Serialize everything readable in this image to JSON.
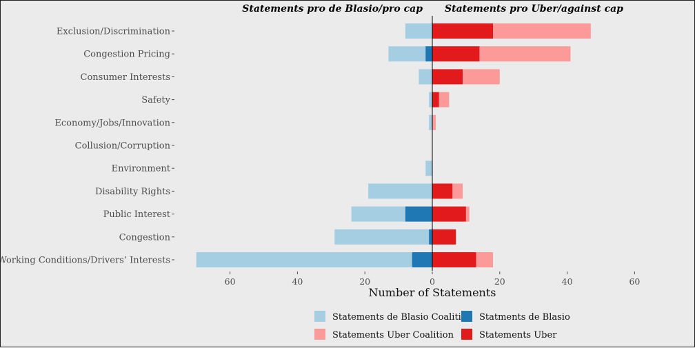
{
  "chart_data": {
    "type": "bar",
    "orientation": "horizontal-diverging",
    "side_titles": {
      "left": "Statements pro de Blasio/pro cap",
      "right": "Statements pro Uber/against cap"
    },
    "xlabel": "Number of Statements",
    "xlim": [
      -70,
      70
    ],
    "xticks": [
      -60,
      -40,
      -20,
      0,
      20,
      40,
      60
    ],
    "xtick_labels": [
      "60",
      "40",
      "20",
      "0",
      "20",
      "40",
      "60"
    ],
    "categories": [
      "Exclusion/Discrimination",
      "Congestion Pricing",
      "Consumer Interests",
      "Safety",
      "Economy/Jobs/Innovation",
      "Collusion/Corruption",
      "Environment",
      "Disability Rights",
      "Public Interest",
      "Congestion",
      "Working Conditions/Drivers’ Interests"
    ],
    "series": [
      {
        "name": "Statements de Blasio Coalition",
        "color": "#a6cee3",
        "side": "left",
        "values": [
          8,
          11,
          4,
          1,
          1,
          0,
          2,
          19,
          16,
          28,
          64
        ]
      },
      {
        "name": "Statments de Blasio",
        "color": "#1f78b4",
        "side": "left",
        "values": [
          0,
          2,
          0,
          0,
          0,
          0,
          0,
          0,
          8,
          1,
          6
        ]
      },
      {
        "name": "Statements Uber Coalition",
        "color": "#fb9a99",
        "side": "right",
        "values": [
          29,
          27,
          11,
          3,
          1,
          0,
          0,
          3,
          1,
          0,
          5
        ]
      },
      {
        "name": "Statements Uber",
        "color": "#e31a1c",
        "side": "right",
        "values": [
          18,
          14,
          9,
          2,
          0,
          0,
          0,
          6,
          10,
          7,
          13
        ]
      }
    ],
    "legend": [
      {
        "label": "Statements de Blasio Coalition",
        "color": "#a6cee3"
      },
      {
        "label": "Statments de Blasio",
        "color": "#1f78b4"
      },
      {
        "label": "Statements Uber Coalition",
        "color": "#fb9a99"
      },
      {
        "label": "Statements Uber",
        "color": "#e31a1c"
      }
    ],
    "legend_position": "bottom",
    "grid": false
  }
}
